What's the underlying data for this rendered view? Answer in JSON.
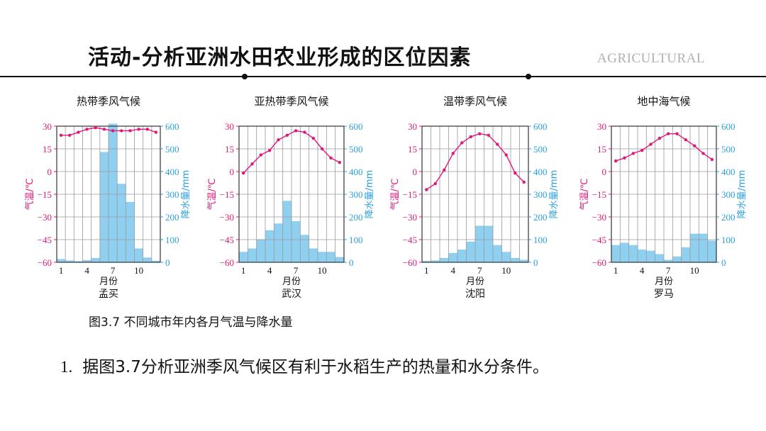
{
  "page": {
    "title": "活动-分析亚洲水田农业形成的区位因素",
    "brand": "AGRICULTURAL",
    "caption": "图3.7 不同城市年内各月气温与降水量",
    "question_number": "1.",
    "question_text": "据图3.7分析亚洲季风气候区有利于水稻生产的热量和水分条件。"
  },
  "colors": {
    "temperature": "#e0187a",
    "precipitation": "#2aa0dc",
    "bar_fill": "#8fd0f0",
    "grid": "#9a9a9a",
    "text": "#111111"
  },
  "chart_data": [
    {
      "type": "bar+line",
      "title": "热带季风气候",
      "city": "孟买",
      "xlabel": "月份",
      "ylabel_left": "气温/℃",
      "ylabel_right": "降水量/mm",
      "ylim_left": [
        -60,
        30
      ],
      "ylim_right": [
        0,
        600
      ],
      "yticks_left": [
        30,
        15,
        0,
        -15,
        -30,
        -45,
        -60
      ],
      "yticks_right": [
        600,
        500,
        400,
        300,
        200,
        100,
        0
      ],
      "xticks": [
        1,
        4,
        7,
        10
      ],
      "months": [
        1,
        2,
        3,
        4,
        5,
        6,
        7,
        8,
        9,
        10,
        11,
        12
      ],
      "temperature": [
        24,
        24,
        26,
        28,
        29,
        28,
        27,
        27,
        27,
        28,
        28,
        26
      ],
      "precipitation": [
        13,
        7,
        4,
        9,
        18,
        485,
        610,
        345,
        265,
        60,
        20,
        6
      ]
    },
    {
      "type": "bar+line",
      "title": "亚热带季风气候",
      "city": "武汉",
      "xlabel": "月份",
      "ylabel_left": "气温/℃",
      "ylabel_right": "降水量/mm",
      "ylim_left": [
        -60,
        30
      ],
      "ylim_right": [
        0,
        600
      ],
      "yticks_left": [
        30,
        15,
        0,
        -15,
        -30,
        -45,
        -60
      ],
      "yticks_right": [
        600,
        500,
        400,
        300,
        200,
        100,
        0
      ],
      "xticks": [
        1,
        4,
        7,
        10
      ],
      "months": [
        1,
        2,
        3,
        4,
        5,
        6,
        7,
        8,
        9,
        10,
        11,
        12
      ],
      "temperature": [
        -1,
        5,
        11,
        14,
        21,
        24,
        27,
        26,
        22,
        15,
        9,
        6
      ],
      "precipitation": [
        45,
        60,
        100,
        140,
        170,
        270,
        180,
        120,
        60,
        45,
        45,
        22
      ]
    },
    {
      "type": "bar+line",
      "title": "温带季风气候",
      "city": "沈阳",
      "xlabel": "月份",
      "ylabel_left": "气温/℃",
      "ylabel_right": "降水量/mm",
      "ylim_left": [
        -60,
        30
      ],
      "ylim_right": [
        0,
        600
      ],
      "yticks_left": [
        30,
        15,
        0,
        -15,
        -30,
        -45,
        -60
      ],
      "yticks_right": [
        600,
        500,
        400,
        300,
        200,
        100,
        0
      ],
      "xticks": [
        1,
        4,
        7,
        10
      ],
      "months": [
        1,
        2,
        3,
        4,
        5,
        6,
        7,
        8,
        9,
        10,
        11,
        12
      ],
      "temperature": [
        -12,
        -8,
        1,
        12,
        19,
        23,
        25,
        24,
        18,
        11,
        -1,
        -7
      ],
      "precipitation": [
        5,
        7,
        18,
        40,
        55,
        90,
        160,
        160,
        75,
        45,
        18,
        10
      ]
    },
    {
      "type": "bar+line",
      "title": "地中海气候",
      "city": "罗马",
      "xlabel": "月份",
      "ylabel_left": "气温/℃",
      "ylabel_right": "降水量/mm",
      "ylim_left": [
        -60,
        30
      ],
      "ylim_right": [
        0,
        600
      ],
      "yticks_left": [
        30,
        15,
        0,
        -15,
        -30,
        -45,
        -60
      ],
      "yticks_right": [
        600,
        500,
        400,
        300,
        200,
        100,
        0
      ],
      "xticks": [
        1,
        4,
        7,
        10
      ],
      "months": [
        1,
        2,
        3,
        4,
        5,
        6,
        7,
        8,
        9,
        10,
        11,
        12
      ],
      "temperature": [
        7,
        9,
        12,
        14,
        18,
        22,
        25,
        25,
        21,
        17,
        12,
        8
      ],
      "precipitation": [
        75,
        85,
        75,
        55,
        50,
        35,
        10,
        25,
        65,
        125,
        125,
        95
      ]
    }
  ]
}
